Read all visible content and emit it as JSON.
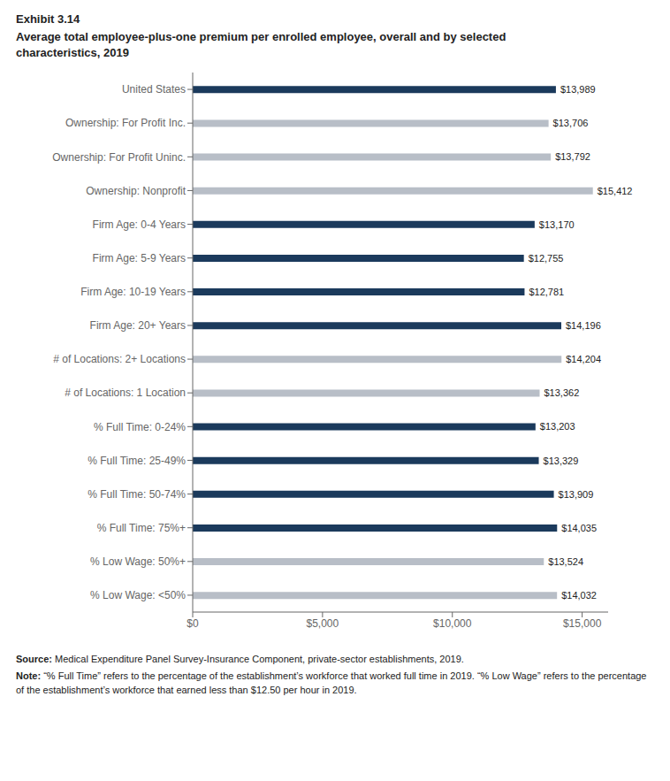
{
  "chart_data": {
    "type": "bar",
    "orientation": "horizontal",
    "title": "Exhibit 3.14",
    "subtitle": "Average total employee-plus-one premium per enrolled employee, overall and by selected\ncharacteristics, 2019",
    "categories": [
      "United States",
      "Ownership: For Profit Inc.",
      "Ownership: For Profit Uninc.",
      "Ownership: Nonprofit",
      "Firm Age: 0-4 Years",
      "Firm Age: 5-9 Years",
      "Firm Age: 10-19 Years",
      "Firm Age: 20+ Years",
      "# of Locations: 2+ Locations",
      "# of Locations: 1 Location",
      "% Full Time: 0-24%",
      "% Full Time: 25-49%",
      "% Full Time: 50-74%",
      "% Full Time: 75%+",
      "% Low Wage: 50%+",
      "% Low Wage: <50%"
    ],
    "values": [
      13989,
      13706,
      13792,
      15412,
      13170,
      12755,
      12781,
      14196,
      14204,
      13362,
      13203,
      13329,
      13909,
      14035,
      13524,
      14032
    ],
    "value_labels": [
      "$13,989",
      "$13,706",
      "$13,792",
      "$15,412",
      "$13,170",
      "$12,755",
      "$12,781",
      "$14,196",
      "$14,204",
      "$13,362",
      "$13,203",
      "$13,329",
      "$13,909",
      "$14,035",
      "$13,524",
      "$14,032"
    ],
    "data_labels": true,
    "colors": [
      "#1B3A5C",
      "#B8BEC7",
      "#B8BEC7",
      "#B8BEC7",
      "#1B3A5C",
      "#1B3A5C",
      "#1B3A5C",
      "#1B3A5C",
      "#B8BEC7",
      "#B8BEC7",
      "#1B3A5C",
      "#1B3A5C",
      "#1B3A5C",
      "#1B3A5C",
      "#B8BEC7",
      "#B8BEC7"
    ],
    "xlim": [
      0,
      16000
    ],
    "xticks": [
      {
        "value": 0,
        "label": "$0"
      },
      {
        "value": 5000,
        "label": "$5,000"
      },
      {
        "value": 10000,
        "label": "$10,000"
      },
      {
        "value": 15000,
        "label": "$15,000"
      }
    ],
    "grid": false,
    "annotations": [
      "Source: Medical Expenditure Panel Survey-Insurance Component, private-sector establishments, 2019.",
      "Note: “% Full Time” refers to the percentage of the establishment’s workforce that worked full time in 2019. “% Low Wage” refers to the percentage of the establishment’s workforce that earned less than $12.50 per hour in 2019."
    ]
  }
}
